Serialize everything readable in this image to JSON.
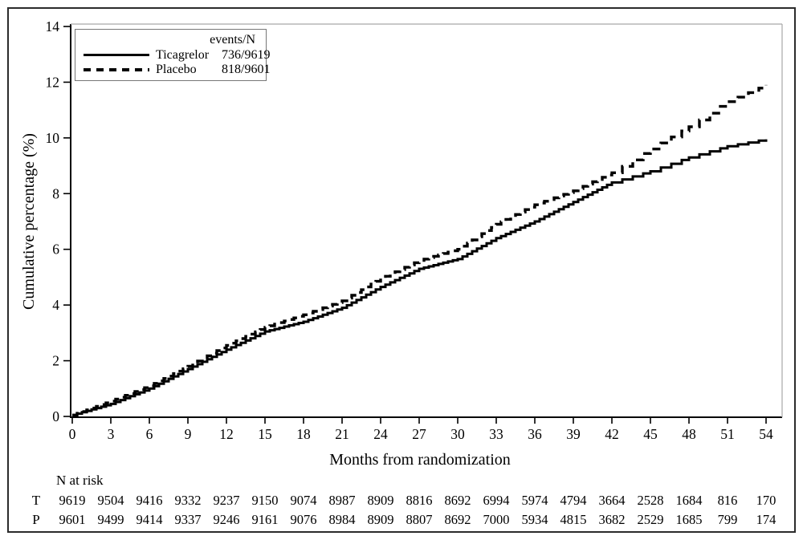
{
  "legend": {
    "header": "events/N",
    "items": [
      {
        "label": "Ticagrelor",
        "value": "736/9619",
        "line_style": "solid"
      },
      {
        "label": "Placebo",
        "value": "818/9601",
        "line_style": "dashed"
      }
    ]
  },
  "chart_data": {
    "type": "line",
    "subtype": "kaplan-meier-step",
    "title": "",
    "xlabel": "Months from randomization",
    "ylabel": "Cumulative percentage (%)",
    "xlim": [
      0,
      54
    ],
    "ylim": [
      0,
      14
    ],
    "x_ticks": [
      0,
      3,
      6,
      9,
      12,
      15,
      18,
      21,
      24,
      27,
      30,
      33,
      36,
      39,
      42,
      45,
      48,
      51,
      54
    ],
    "y_ticks": [
      0,
      2,
      4,
      6,
      8,
      10,
      12,
      14
    ],
    "grid": false,
    "legend_position": "top-left",
    "line_color": "#000000",
    "x": [
      0,
      3,
      6,
      9,
      12,
      15,
      18,
      21,
      24,
      27,
      30,
      33,
      36,
      39,
      42,
      45,
      48,
      51,
      54
    ],
    "series": [
      {
        "name": "Ticagrelor",
        "style": "solid",
        "events_n": "736/9619",
        "values": [
          0.05,
          0.45,
          1.0,
          1.7,
          2.4,
          3.05,
          3.4,
          3.9,
          4.65,
          5.3,
          5.65,
          6.4,
          7.0,
          7.7,
          8.4,
          8.8,
          9.3,
          9.7,
          9.95
        ]
      },
      {
        "name": "Placebo",
        "style": "dashed",
        "events_n": "818/9601",
        "values": [
          0.05,
          0.55,
          1.1,
          1.8,
          2.55,
          3.2,
          3.65,
          4.15,
          4.95,
          5.6,
          6.0,
          6.9,
          7.6,
          8.1,
          8.75,
          9.6,
          10.4,
          11.3,
          11.9
        ]
      }
    ],
    "risk_table": {
      "title": "N at risk",
      "rows": [
        {
          "label": "T",
          "counts": [
            9619,
            9504,
            9416,
            9332,
            9237,
            9150,
            9074,
            8987,
            8909,
            8816,
            8692,
            6994,
            5974,
            4794,
            3664,
            2528,
            1684,
            816,
            170
          ]
        },
        {
          "label": "P",
          "counts": [
            9601,
            9499,
            9414,
            9337,
            9246,
            9161,
            9076,
            8984,
            8909,
            8807,
            8692,
            7000,
            5934,
            4815,
            3682,
            2529,
            1685,
            799,
            174
          ]
        }
      ]
    }
  }
}
